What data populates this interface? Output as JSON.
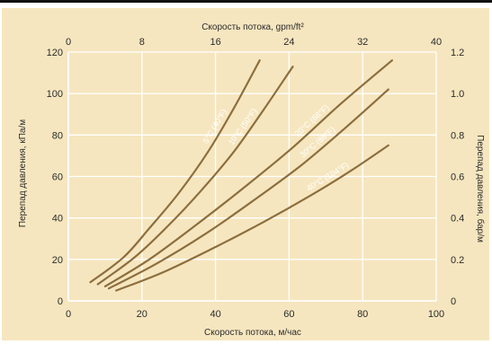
{
  "chart_data": {
    "type": "line",
    "title": "",
    "xlabel_bottom": "Скорость потока, м/час",
    "xlabel_top": "Скорость потока, gpm/ft²",
    "ylabel_left": "Перепад давления, кПа/м",
    "ylabel_right": "Перепад давления, бар/м",
    "xlim_bottom": [
      0,
      100
    ],
    "xlim_top": [
      0,
      40
    ],
    "ylim_left": [
      0,
      120
    ],
    "ylim_right": [
      0,
      1.2
    ],
    "grid": true,
    "legend": "none",
    "x_ticks_bottom": [
      "0",
      "20",
      "40",
      "60",
      "80",
      "100"
    ],
    "x_ticks_top": [
      "0",
      "8",
      "16",
      "24",
      "32",
      "40"
    ],
    "y_ticks_left": [
      "0",
      "20",
      "40",
      "60",
      "80",
      "100",
      "120"
    ],
    "y_ticks_right": [
      "0",
      "0.2",
      "0.4",
      "0.6",
      "0.8",
      "1.0",
      "1.2"
    ],
    "series": [
      {
        "name": "5°C (40°F)",
        "x": [
          6,
          15,
          22,
          30,
          38,
          45,
          52
        ],
        "y": [
          9,
          21,
          35,
          52,
          72,
          93,
          116
        ]
      },
      {
        "name": "10°C (50°F)",
        "x": [
          8,
          18,
          27,
          36,
          45,
          53,
          61
        ],
        "y": [
          8,
          21,
          36,
          53,
          72,
          92,
          113
        ]
      },
      {
        "name": "20°C (68°F)",
        "x": [
          10,
          22,
          35,
          48,
          61,
          74,
          88
        ],
        "y": [
          7,
          20,
          37,
          55,
          74,
          95,
          116
        ]
      },
      {
        "name": "30°C (86°F)",
        "x": [
          11,
          24,
          37,
          50,
          63,
          75,
          87
        ],
        "y": [
          6,
          18,
          32,
          48,
          65,
          83,
          102
        ]
      },
      {
        "name": "40°C (104°F)",
        "x": [
          13,
          26,
          40,
          53,
          66,
          77,
          87
        ],
        "y": [
          5,
          14,
          26,
          38,
          51,
          63,
          75
        ]
      }
    ],
    "colors": {
      "panel": "#f6e6bf",
      "grid": "#ffffff",
      "curve": "#8c6e3e",
      "label": "#ffffff"
    }
  }
}
